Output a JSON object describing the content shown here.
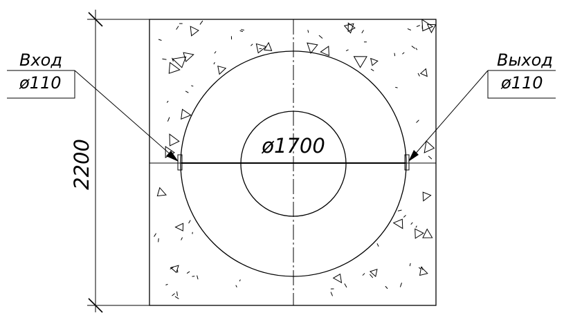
{
  "drawing": {
    "dimension_height": "2200",
    "ring_diameter_label": "ø1700",
    "inlet": {
      "label": "Вход",
      "diameter": "ø110"
    },
    "outlet": {
      "label": "Выход",
      "diameter": "ø110"
    },
    "line_color": "#000000",
    "background_color": "#ffffff"
  }
}
